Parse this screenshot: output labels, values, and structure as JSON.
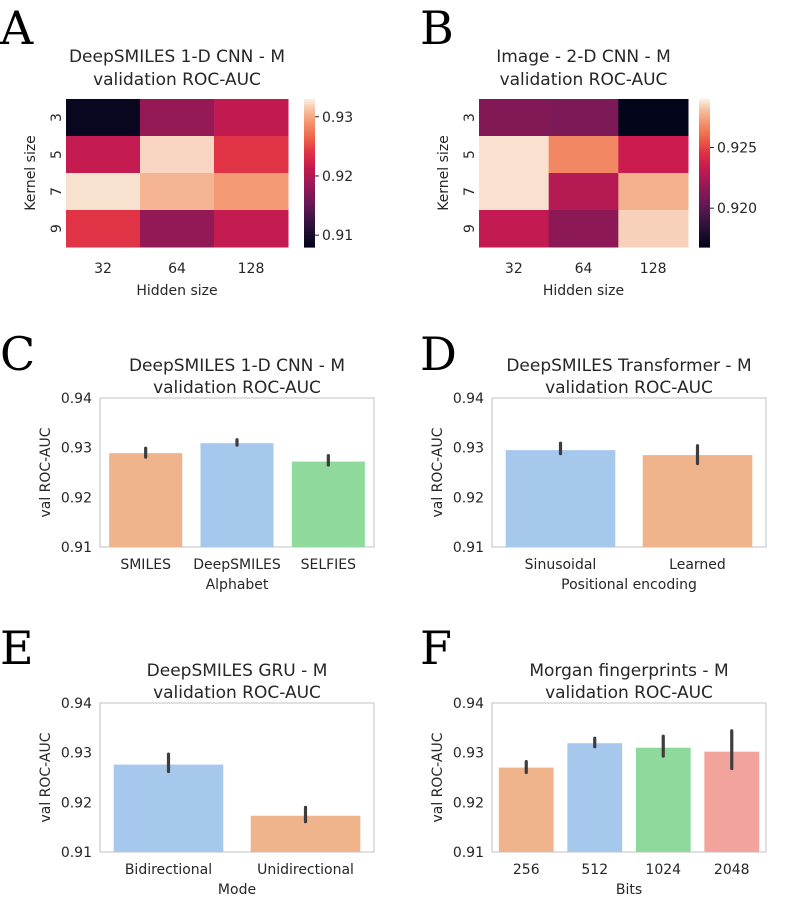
{
  "panel_letters": [
    "A",
    "B",
    "C",
    "D",
    "E",
    "F"
  ],
  "colors": {
    "orange": "#f0b48c",
    "blue": "#a6c8ec",
    "green": "#8fd99c",
    "red": "#f2a49c",
    "errbar": "#3d3d3d",
    "spine": "#cccccc"
  },
  "chart_data": [
    {
      "panel": "A",
      "type": "heatmap",
      "title": [
        "DeepSMILES 1-D CNN - M",
        "validation ROC-AUC"
      ],
      "xlabel": "Hidden size",
      "ylabel": "Kernel size",
      "x_categories": [
        "32",
        "64",
        "128"
      ],
      "y_categories": [
        "3",
        "5",
        "7",
        "9"
      ],
      "values": [
        [
          0.9085,
          0.9182,
          0.921
        ],
        [
          0.9213,
          0.9322,
          0.924
        ],
        [
          0.9326,
          0.9308,
          0.9295
        ],
        [
          0.924,
          0.918,
          0.9213
        ]
      ],
      "vmin": 0.908,
      "vmax": 0.933,
      "colorbar_ticks": [
        0.91,
        0.92,
        0.93
      ],
      "colorbar_tick_labels": [
        "0.91",
        "0.92",
        "0.93"
      ]
    },
    {
      "panel": "B",
      "type": "heatmap",
      "title": [
        "Image - 2-D CNN - M",
        "validation ROC-AUC"
      ],
      "xlabel": "Hidden size",
      "ylabel": "Kernel size",
      "x_categories": [
        "32",
        "64",
        "128"
      ],
      "y_categories": [
        "3",
        "5",
        "7",
        "9"
      ],
      "values": [
        [
          0.9212,
          0.921,
          0.9168
        ],
        [
          0.9288,
          0.9268,
          0.9235
        ],
        [
          0.9288,
          0.9228,
          0.9278
        ],
        [
          0.9232,
          0.9215,
          0.9285
        ]
      ],
      "vmin": 0.9168,
      "vmax": 0.929,
      "colorbar_ticks": [
        0.92,
        0.925
      ],
      "colorbar_tick_labels": [
        "0.920",
        "0.925"
      ]
    },
    {
      "panel": "C",
      "type": "bar",
      "title": [
        "DeepSMILES 1-D CNN - M",
        "validation ROC-AUC"
      ],
      "xlabel": "Alphabet",
      "ylabel": "val ROC-AUC",
      "categories": [
        "SMILES",
        "DeepSMILES",
        "SELFIES"
      ],
      "values": [
        0.9289,
        0.9309,
        0.9272
      ],
      "err_low": [
        0.9281,
        0.9305,
        0.9265
      ],
      "err_high": [
        0.9299,
        0.9316,
        0.9284
      ],
      "bar_colors": [
        "orange",
        "blue",
        "green"
      ],
      "ylim": [
        0.91,
        0.94
      ],
      "yticks": [
        "0.91",
        "0.92",
        "0.93",
        "0.94"
      ]
    },
    {
      "panel": "D",
      "type": "bar",
      "title": [
        "DeepSMILES Transformer - M",
        "validation ROC-AUC"
      ],
      "xlabel": "Positional encoding",
      "ylabel": "val ROC-AUC",
      "categories": [
        "Sinusoidal",
        "Learned"
      ],
      "values": [
        0.9295,
        0.9285
      ],
      "err_low": [
        0.9288,
        0.9268
      ],
      "err_high": [
        0.9309,
        0.9304
      ],
      "bar_colors": [
        "blue",
        "orange"
      ],
      "ylim": [
        0.91,
        0.94
      ],
      "yticks": [
        "0.91",
        "0.92",
        "0.93",
        "0.94"
      ]
    },
    {
      "panel": "E",
      "type": "bar",
      "title": [
        "DeepSMILES GRU - M",
        "validation ROC-AUC"
      ],
      "xlabel": "Mode",
      "ylabel": "val ROC-AUC",
      "categories": [
        "Bidirectional",
        "Unidirectional"
      ],
      "values": [
        0.9276,
        0.9173
      ],
      "err_low": [
        0.9262,
        0.9161
      ],
      "err_high": [
        0.9297,
        0.919
      ],
      "bar_colors": [
        "blue",
        "orange"
      ],
      "ylim": [
        0.91,
        0.94
      ],
      "yticks": [
        "0.91",
        "0.92",
        "0.93",
        "0.94"
      ]
    },
    {
      "panel": "F",
      "type": "bar",
      "title": [
        "Morgan fingerprints - M",
        "validation ROC-AUC"
      ],
      "xlabel": "Bits",
      "ylabel": "val ROC-AUC",
      "categories": [
        "256",
        "512",
        "1024",
        "2048"
      ],
      "values": [
        0.927,
        0.9319,
        0.931,
        0.9302
      ],
      "err_low": [
        0.926,
        0.9312,
        0.9293,
        0.9268
      ],
      "err_high": [
        0.9282,
        0.9329,
        0.9333,
        0.9344
      ],
      "bar_colors": [
        "orange",
        "blue",
        "green",
        "red"
      ],
      "ylim": [
        0.91,
        0.94
      ],
      "yticks": [
        "0.91",
        "0.92",
        "0.93",
        "0.94"
      ]
    }
  ]
}
